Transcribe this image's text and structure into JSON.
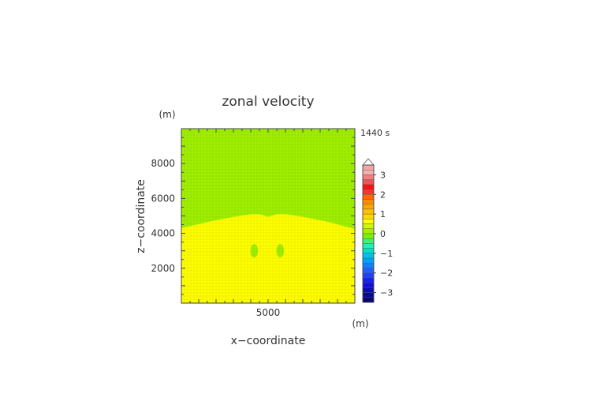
{
  "chart_data": {
    "type": "heatmap",
    "title": "zonal velocity",
    "xlabel": "x−coordinate",
    "ylabel": "z−coordinate",
    "x_unit": "(m)",
    "y_unit": "(m)",
    "time_label": "1440 s",
    "xlim": [
      0,
      10000
    ],
    "ylim": [
      0,
      10000
    ],
    "x_ticks": [
      5000
    ],
    "x_tick_labels": [
      "5000"
    ],
    "y_ticks": [
      2000,
      4000,
      6000,
      8000
    ],
    "y_tick_labels": [
      "2000",
      "4000",
      "6000",
      "8000"
    ],
    "interface_profile": {
      "x": [
        0,
        1500,
        3000,
        4000,
        4500,
        5000,
        5500,
        6000,
        7000,
        8500,
        10000
      ],
      "z": [
        4300,
        4650,
        4950,
        5100,
        5100,
        4950,
        5100,
        5100,
        4950,
        4650,
        4250
      ]
    },
    "regions": [
      {
        "name": "upper",
        "level": "0 to 0.5",
        "color": "#a0f000"
      },
      {
        "name": "lower",
        "level": "0.5 to 0.75",
        "color": "#ffff00"
      },
      {
        "name": "blob-left",
        "level": "0 to 0.5",
        "color": "#a0f000",
        "center": [
          4200,
          3000
        ],
        "radius": [
          220,
          380
        ]
      },
      {
        "name": "blob-right",
        "level": "0 to 0.5",
        "color": "#a0f000",
        "center": [
          5700,
          3000
        ],
        "radius": [
          220,
          380
        ]
      }
    ],
    "colorbar": {
      "min": -3.5,
      "max": 3.5,
      "step": 0.25,
      "ticks": [
        3,
        2,
        1,
        0,
        -1,
        -2,
        -3
      ],
      "tick_labels": [
        "3",
        "2",
        "1",
        "0",
        "−1",
        "−2",
        "−3"
      ],
      "levels": [
        {
          "from": 3.25,
          "to": 3.5,
          "color": "#f4a5a5"
        },
        {
          "from": 3.0,
          "to": 3.25,
          "color": "#f7b0b0"
        },
        {
          "from": 2.75,
          "to": 3.0,
          "color": "#f28080"
        },
        {
          "from": 2.5,
          "to": 2.75,
          "color": "#f05555"
        },
        {
          "from": 2.25,
          "to": 2.5,
          "color": "#ff1010"
        },
        {
          "from": 2.0,
          "to": 2.25,
          "color": "#ff3030"
        },
        {
          "from": 1.75,
          "to": 2.0,
          "color": "#ff6a00"
        },
        {
          "from": 1.5,
          "to": 1.75,
          "color": "#ff8c00"
        },
        {
          "from": 1.25,
          "to": 1.5,
          "color": "#ffa500"
        },
        {
          "from": 1.0,
          "to": 1.25,
          "color": "#ffc000"
        },
        {
          "from": 0.75,
          "to": 1.0,
          "color": "#ffd800"
        },
        {
          "from": 0.5,
          "to": 0.75,
          "color": "#ffff00"
        },
        {
          "from": 0.25,
          "to": 0.5,
          "color": "#d2f500"
        },
        {
          "from": 0.0,
          "to": 0.25,
          "color": "#a0f000"
        },
        {
          "from": -0.25,
          "to": 0.0,
          "color": "#7cf000"
        },
        {
          "from": -0.5,
          "to": -0.25,
          "color": "#40f070"
        },
        {
          "from": -0.75,
          "to": -0.5,
          "color": "#20f0b0"
        },
        {
          "from": -1.0,
          "to": -0.75,
          "color": "#00e0d0"
        },
        {
          "from": -1.25,
          "to": -1.0,
          "color": "#00c0e8"
        },
        {
          "from": -1.5,
          "to": -1.25,
          "color": "#00a0ff"
        },
        {
          "from": -1.75,
          "to": -1.5,
          "color": "#1080ff"
        },
        {
          "from": -2.0,
          "to": -1.75,
          "color": "#2060ff"
        },
        {
          "from": -2.25,
          "to": -2.0,
          "color": "#2040ff"
        },
        {
          "from": -2.5,
          "to": -2.25,
          "color": "#1a20f0"
        },
        {
          "from": -2.75,
          "to": -2.5,
          "color": "#1010d8"
        },
        {
          "from": -3.0,
          "to": -2.75,
          "color": "#0a0ab8"
        },
        {
          "from": -3.25,
          "to": -3.0,
          "color": "#080896"
        },
        {
          "from": -3.5,
          "to": -3.25,
          "color": "#060670"
        }
      ]
    }
  }
}
